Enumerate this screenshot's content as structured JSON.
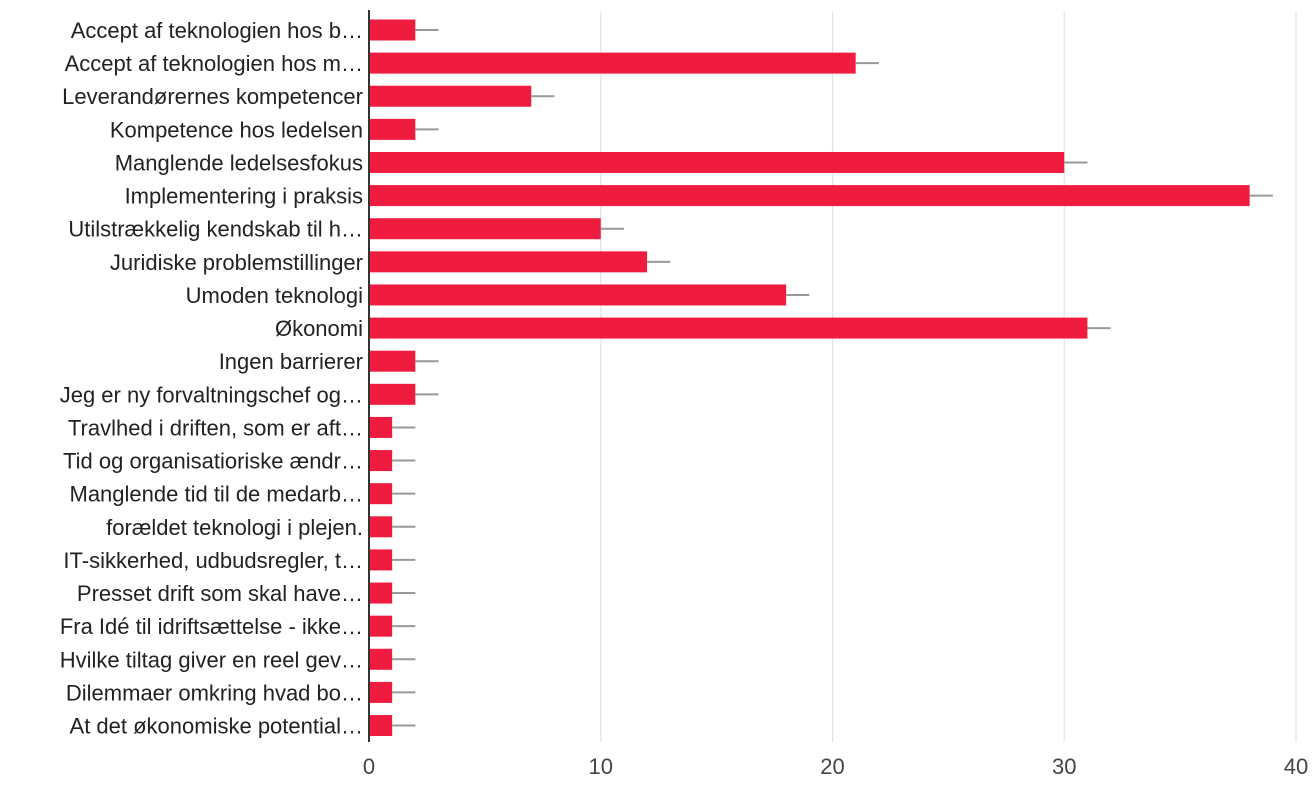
{
  "chart_data": {
    "type": "bar",
    "orientation": "horizontal",
    "categories": [
      "Accept af teknologien hos b…",
      "Accept af teknologien hos m…",
      "Leverandørernes kompetencer",
      "Kompetence hos ledelsen",
      "Manglende ledelsesfokus",
      "Implementering i praksis",
      "Utilstrækkelig kendskab til h…",
      "Juridiske problemstillinger",
      "Umoden teknologi",
      "Økonomi",
      "Ingen barrierer",
      "Jeg er ny forvaltningschef og…",
      "Travlhed i driften, som er aft…",
      "Tid og organisatioriske ændr…",
      "Manglende tid til de medarb…",
      "forældet teknologi i plejen.",
      "IT-sikkerhed, udbudsregler, t…",
      "Presset drift som skal have…",
      "Fra Idé til idriftsættelse - ikke…",
      "Hvilke tiltag giver en reel gev…",
      "Dilemmaer omkring hvad bo…",
      "At det økonomiske potential…"
    ],
    "values": [
      2,
      21,
      7,
      2,
      30,
      38,
      10,
      12,
      18,
      31,
      2,
      2,
      1,
      1,
      1,
      1,
      1,
      1,
      1,
      1,
      1,
      1
    ],
    "xlim": [
      0,
      40
    ],
    "xticks": [
      0,
      10,
      20,
      30,
      40
    ],
    "grid": true,
    "bar_color": "#ef1c3f",
    "axis_color": "#333333",
    "grid_color": "#e3e3e3",
    "error_bar_color": "#999999",
    "label_color": "#222222"
  }
}
